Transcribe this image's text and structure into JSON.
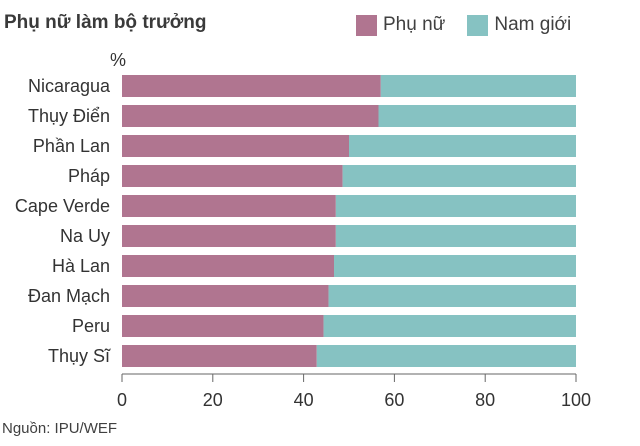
{
  "chart_data": {
    "type": "bar",
    "orientation": "horizontal",
    "stacked": true,
    "title": "Phụ nữ làm bộ trưởng",
    "unit_label": "%",
    "categories": [
      "Nicaragua",
      "Thụy Điển",
      "Phần Lan",
      "Pháp",
      "Cape Verde",
      "Na Uy",
      "Hà Lan",
      "Đan Mạch",
      "Peru",
      "Thụy Sĩ"
    ],
    "series": [
      {
        "name": "Phụ nữ",
        "color": "#b07590",
        "values": [
          57,
          56.5,
          50,
          48.6,
          47.1,
          47.1,
          46.7,
          45.5,
          44.4,
          42.9
        ]
      },
      {
        "name": "Nam giới",
        "color": "#86c2c2",
        "values": [
          43,
          43.5,
          50,
          51.4,
          52.9,
          52.9,
          53.3,
          54.5,
          55.6,
          57.1
        ]
      }
    ],
    "xlim": [
      0,
      100
    ],
    "xticks": [
      0,
      20,
      40,
      60,
      80,
      100
    ],
    "legend_position": "top-right",
    "grid": false
  },
  "source": "Nguồn: IPU/WEF"
}
